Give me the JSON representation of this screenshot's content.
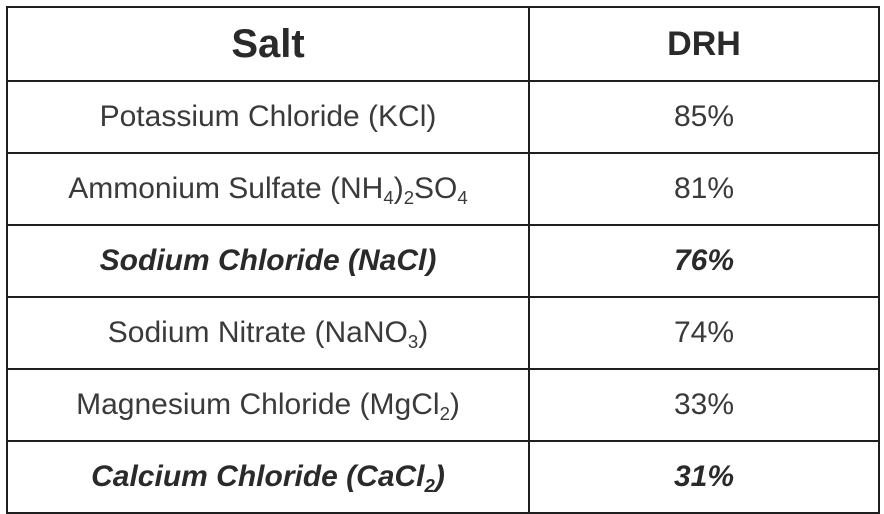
{
  "table": {
    "headers": {
      "salt": "Salt",
      "drh": "DRH"
    },
    "rows": [
      {
        "salt": {
          "text_1": "Potassium Chloride (KCl)"
        },
        "drh": "85%",
        "emphasis": false
      },
      {
        "salt": {
          "text_1": "Ammonium Sulfate (NH",
          "sub_1": "4",
          "text_2": ")",
          "sub_2": "2",
          "text_3": "SO",
          "sub_3": "4"
        },
        "drh": "81%",
        "emphasis": false
      },
      {
        "salt": {
          "text_1": "Sodium Chloride (NaCl)"
        },
        "drh": "76%",
        "emphasis": true
      },
      {
        "salt": {
          "text_1": "Sodium Nitrate (NaNO",
          "sub_1": "3",
          "text_2": ")"
        },
        "drh": "74%",
        "emphasis": false
      },
      {
        "salt": {
          "text_1": "Magnesium Chloride (MgCl",
          "sub_1": "2",
          "text_2": ")"
        },
        "drh": "33%",
        "emphasis": false
      },
      {
        "salt": {
          "text_1": "Calcium Chloride (CaCl",
          "sub_1": "2",
          "text_2": ")"
        },
        "drh": "31%",
        "emphasis": true
      }
    ]
  }
}
